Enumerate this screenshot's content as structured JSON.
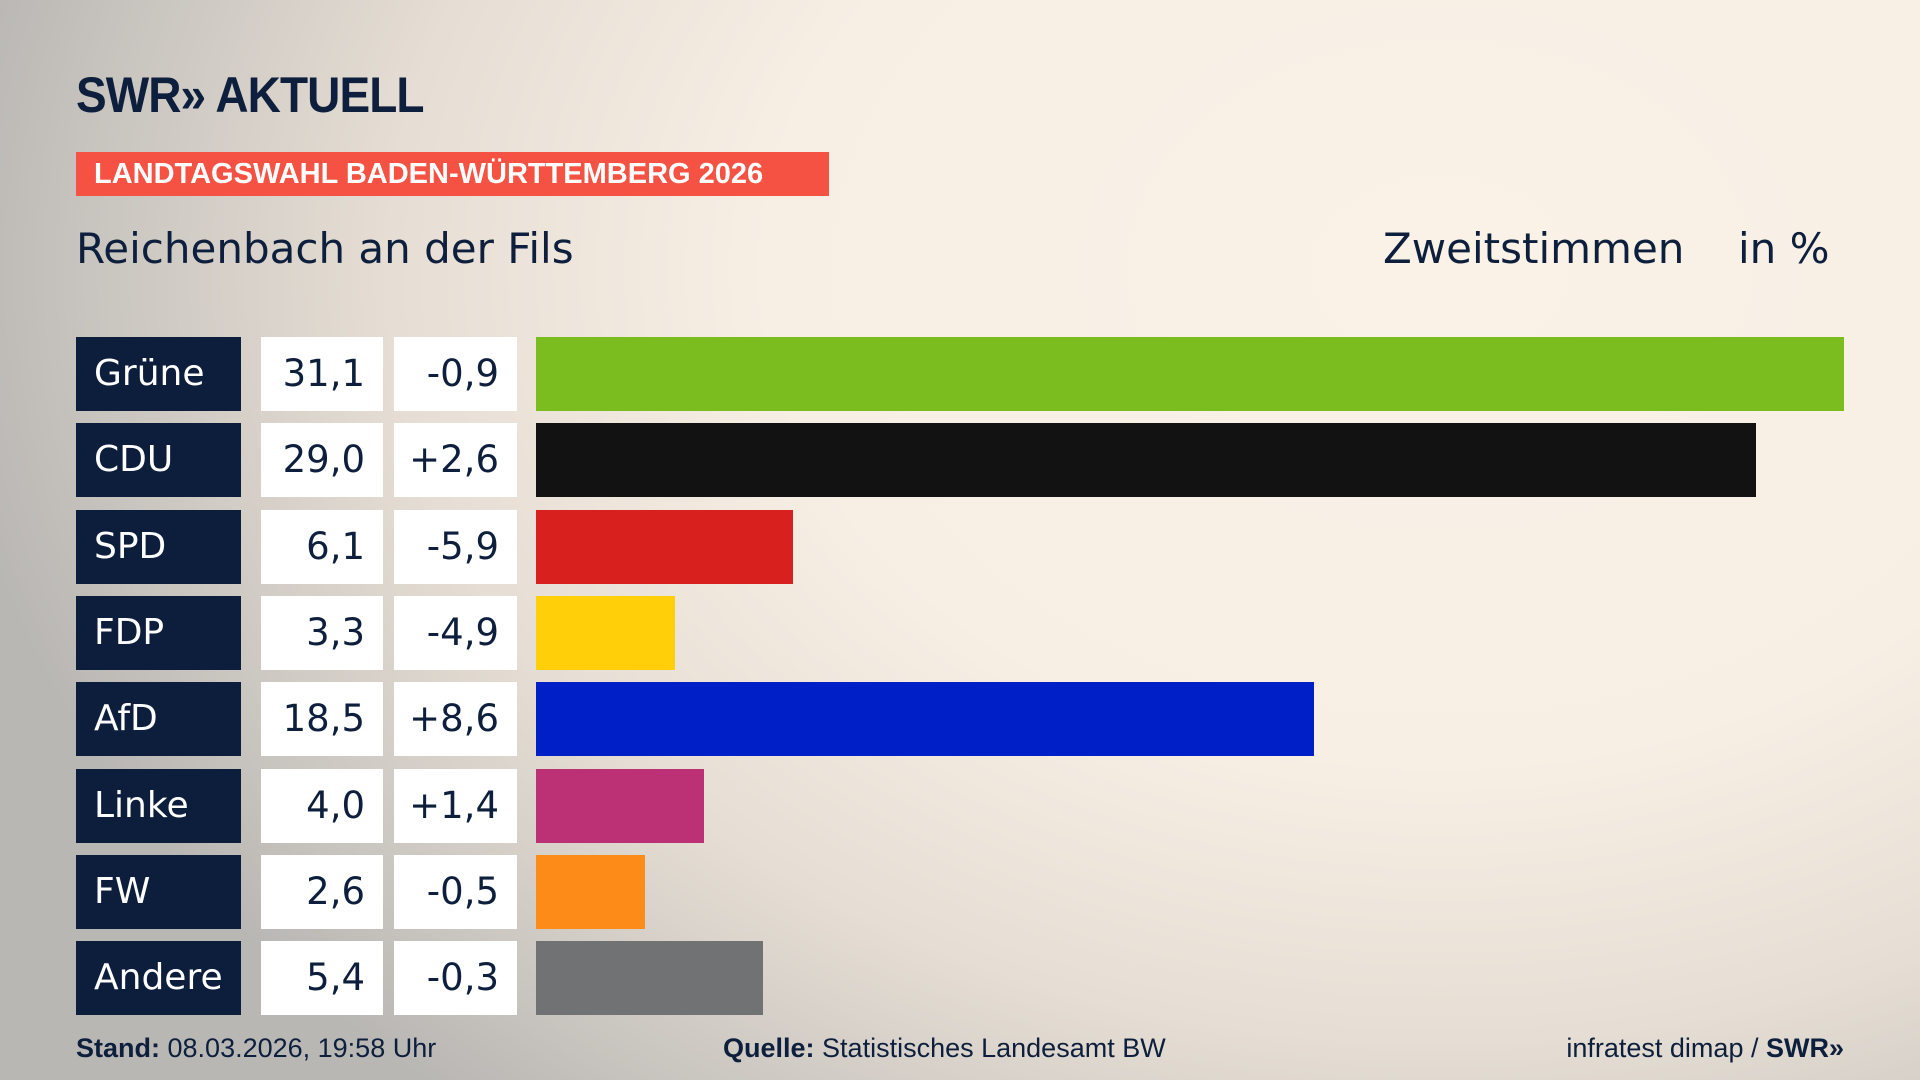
{
  "header": {
    "logo": "SWR» AKTUELL",
    "banner": "LANDTAGSWAHL BADEN-WÜRTTEMBERG 2026",
    "location": "Reichenbach an der Fils",
    "vote_type": "Zweitstimmen",
    "unit": "in %"
  },
  "chart_data": {
    "type": "bar",
    "orientation": "horizontal",
    "categories": [
      "Grüne",
      "CDU",
      "SPD",
      "FDP",
      "AfD",
      "Linke",
      "FW",
      "Andere"
    ],
    "values": [
      31.1,
      29.0,
      6.1,
      3.3,
      18.5,
      4.0,
      2.6,
      5.4
    ],
    "value_labels": [
      "31,1",
      "29,0",
      "6,1",
      "3,3",
      "18,5",
      "4,0",
      "2,6",
      "5,4"
    ],
    "change_labels": [
      "-0,9",
      "+2,6",
      "-5,9",
      "-4,9",
      "+8,6",
      "+1,4",
      "-0,5",
      "-0,3"
    ],
    "changes": [
      -0.9,
      2.6,
      -5.9,
      -4.9,
      8.6,
      1.4,
      -0.5,
      -0.3
    ],
    "colors": [
      "#7bbd1e",
      "#121212",
      "#d8201f",
      "#ffcf0a",
      "#001fc7",
      "#bc3175",
      "#fc8b17",
      "#717274"
    ],
    "xlim": [
      0,
      31.1
    ],
    "grid": false
  },
  "footer": {
    "stand_label": "Stand:",
    "stand_value": "08.03.2026, 19:58 Uhr",
    "source_label": "Quelle:",
    "source_value": "Statistisches Landesamt BW",
    "credit": "infratest dimap /",
    "credit_logo": "SWR»"
  }
}
